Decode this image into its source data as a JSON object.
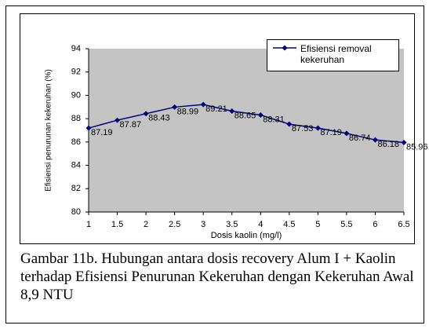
{
  "chart_data": {
    "type": "line",
    "x": [
      1,
      1.5,
      2,
      2.5,
      3,
      3.5,
      4,
      4.5,
      5,
      5.5,
      6,
      6.5
    ],
    "series": [
      {
        "name": "Efisiensi removal kekeruhan",
        "color": "#000080",
        "values": [
          87.19,
          87.87,
          88.43,
          88.99,
          89.21,
          88.65,
          88.31,
          87.53,
          87.19,
          86.74,
          86.18,
          85.96
        ]
      }
    ],
    "xlim": [
      1,
      6.5
    ],
    "xticks": [
      1,
      1.5,
      2,
      2.5,
      3,
      3.5,
      4,
      4.5,
      5,
      5.5,
      6,
      6.5
    ],
    "ylim": [
      80,
      94
    ],
    "yticks": [
      80,
      82,
      84,
      86,
      88,
      90,
      92,
      94
    ],
    "x_label": "Dosis kaolin (mg/l)",
    "y_label": "Efisiensi penurunan kekeruhan (%)",
    "grid": false,
    "plot_background": "#c4c4c4"
  },
  "caption": "Gambar 11b. Hubungan antara dosis recovery Alum I + Kaolin terhadap Efisiensi Penurunan Kekeruhan dengan Kekeruhan Awal 8,9 NTU"
}
